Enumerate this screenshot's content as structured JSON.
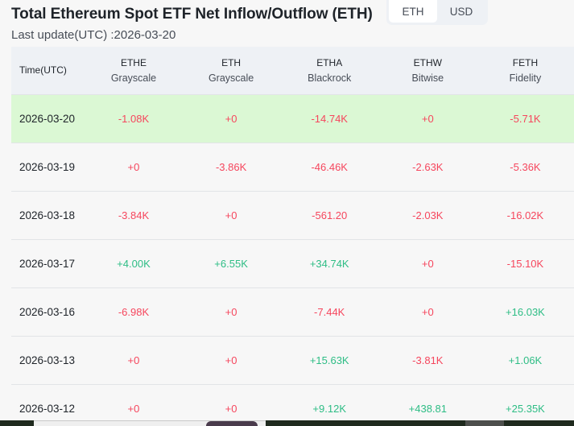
{
  "header": {
    "title": "Total Ethereum Spot ETF Net Inflow/Outflow (ETH)",
    "last_update": "Last update(UTC) :2026-03-20",
    "unit_toggle": {
      "options": [
        "ETH",
        "USD"
      ],
      "selected": "ETH"
    }
  },
  "table": {
    "columns": [
      {
        "ticker": "Time(UTC)",
        "issuer": ""
      },
      {
        "ticker": "ETHE",
        "issuer": "Grayscale"
      },
      {
        "ticker": "ETH",
        "issuer": "Grayscale"
      },
      {
        "ticker": "ETHA",
        "issuer": "Blackrock"
      },
      {
        "ticker": "ETHW",
        "issuer": "Bitwise"
      },
      {
        "ticker": "FETH",
        "issuer": "Fidelity"
      }
    ],
    "rows": [
      {
        "date": "2026-03-20",
        "values": [
          "-1.08K",
          "+0",
          "-14.74K",
          "+0",
          "-5.71K"
        ],
        "highlight": true
      },
      {
        "date": "2026-03-19",
        "values": [
          "+0",
          "-3.86K",
          "-46.46K",
          "-2.63K",
          "-5.36K"
        ]
      },
      {
        "date": "2026-03-18",
        "values": [
          "-3.84K",
          "+0",
          "-561.20",
          "-2.03K",
          "-16.02K"
        ]
      },
      {
        "date": "2026-03-17",
        "values": [
          "+4.00K",
          "+6.55K",
          "+34.74K",
          "+0",
          "-15.10K"
        ]
      },
      {
        "date": "2026-03-16",
        "values": [
          "-6.98K",
          "+0",
          "-7.44K",
          "+0",
          "+16.03K"
        ]
      },
      {
        "date": "2026-03-13",
        "values": [
          "+0",
          "+0",
          "+15.63K",
          "-3.81K",
          "+1.06K"
        ]
      },
      {
        "date": "2026-03-12",
        "values": [
          "+0",
          "+0",
          "+9.12K",
          "+438.81",
          "+25.35K"
        ]
      }
    ]
  },
  "colors": {
    "positive": "#2ebd85",
    "negative": "#f6465d",
    "highlight_row": "#dbf8d4",
    "header_bg": "#eef1f5"
  }
}
